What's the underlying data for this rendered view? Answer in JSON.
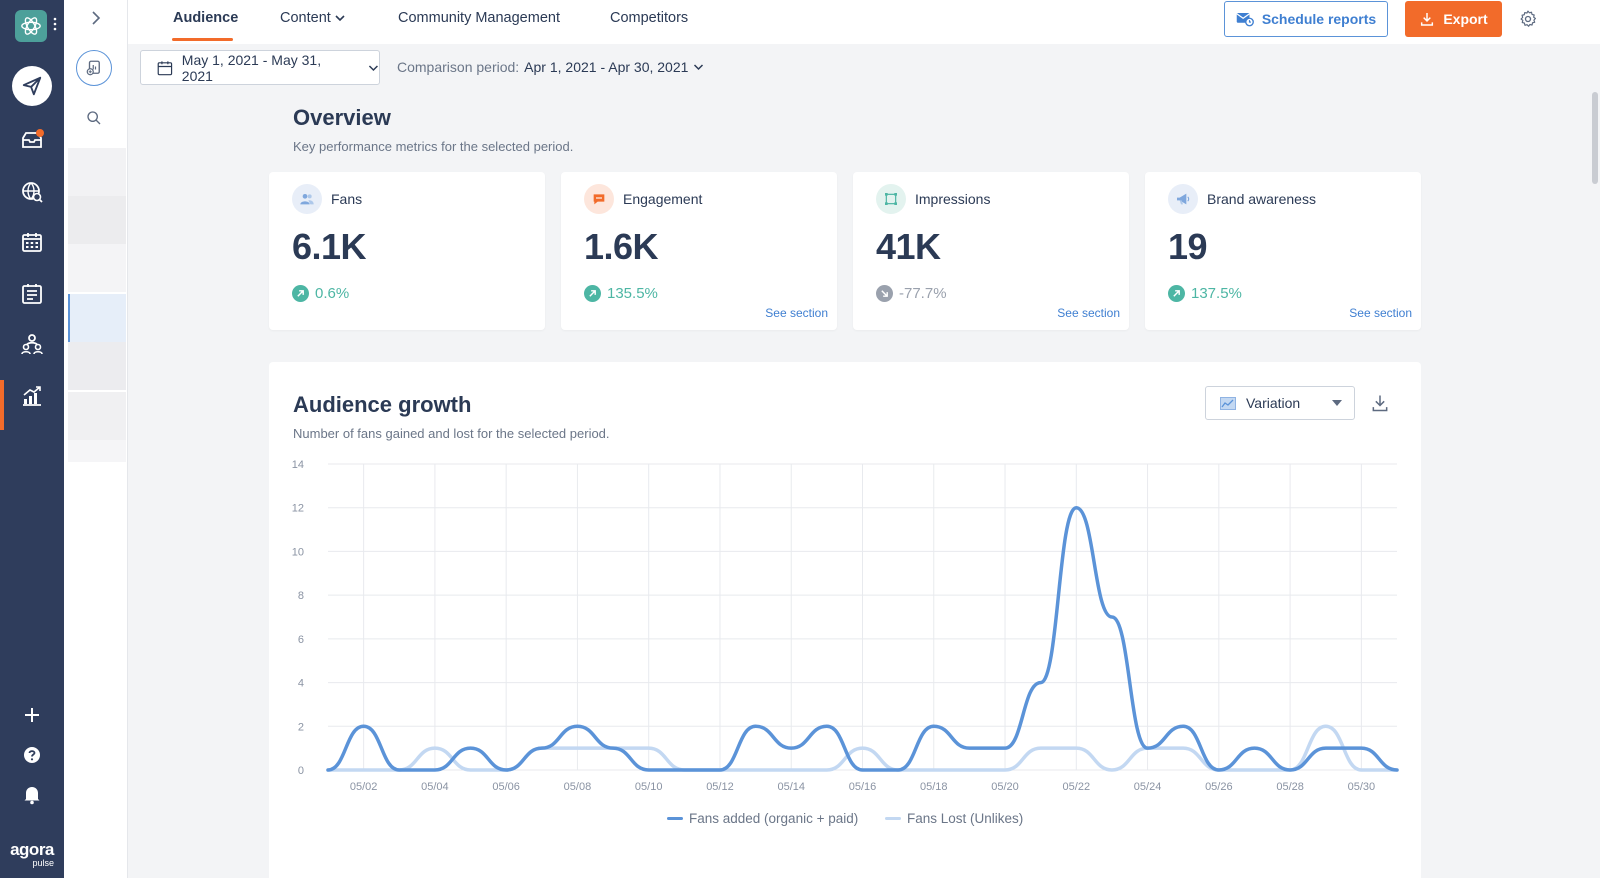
{
  "brand": {
    "name": "agora",
    "sub": "pulse"
  },
  "tabs": [
    {
      "label": "Audience",
      "active": true
    },
    {
      "label": "Content"
    },
    {
      "label": "Community Management"
    },
    {
      "label": "Competitors"
    }
  ],
  "toolbar": {
    "schedule_label": "Schedule reports",
    "export_label": "Export"
  },
  "filters": {
    "date_range": "May 1, 2021 - May 31, 2021",
    "comparison_label": "Comparison period:",
    "comparison_value": "Apr 1, 2021 - Apr 30, 2021"
  },
  "overview": {
    "title": "Overview",
    "subtitle": "Key performance metrics for the selected period.",
    "cards": [
      {
        "label": "Fans",
        "value": "6.1K",
        "trend": "0.6%",
        "direction": "up",
        "link": ""
      },
      {
        "label": "Engagement",
        "value": "1.6K",
        "trend": "135.5%",
        "direction": "up",
        "link": "See section"
      },
      {
        "label": "Impressions",
        "value": "41K",
        "trend": "-77.7%",
        "direction": "down",
        "link": "See section"
      },
      {
        "label": "Brand awareness",
        "value": "19",
        "trend": "137.5%",
        "direction": "up",
        "link": "See section"
      }
    ]
  },
  "growth": {
    "title": "Audience growth",
    "subtitle": "Number of fans gained and lost for the selected period.",
    "view_select": "Variation"
  },
  "colors": {
    "accent": "#f26b2a",
    "link": "#3f7fd1",
    "positive": "#4db6a4",
    "negative": "#9aa1ad",
    "series_added": "#5b93d8",
    "series_lost": "#c3d8f2",
    "rail_bg": "#2f3d5c"
  },
  "icons": {
    "rail": [
      "logo-icon",
      "compose-icon",
      "inbox-icon",
      "listening-icon",
      "calendar-icon",
      "planner-icon",
      "team-icon",
      "reports-icon",
      "add-icon",
      "help-icon",
      "bell-icon"
    ],
    "cards": [
      "fans-icon",
      "engagement-icon",
      "impressions-icon",
      "megaphone-icon"
    ]
  },
  "chart_data": {
    "type": "line",
    "x": [
      "05/01",
      "05/02",
      "05/03",
      "05/04",
      "05/05",
      "05/06",
      "05/07",
      "05/08",
      "05/09",
      "05/10",
      "05/11",
      "05/12",
      "05/13",
      "05/14",
      "05/15",
      "05/16",
      "05/17",
      "05/18",
      "05/19",
      "05/20",
      "05/21",
      "05/22",
      "05/23",
      "05/24",
      "05/25",
      "05/26",
      "05/27",
      "05/28",
      "05/29",
      "05/30",
      "05/31"
    ],
    "xticks": [
      "05/02",
      "05/04",
      "05/06",
      "05/08",
      "05/10",
      "05/12",
      "05/14",
      "05/16",
      "05/18",
      "05/20",
      "05/22",
      "05/24",
      "05/26",
      "05/28",
      "05/30"
    ],
    "ylim": [
      0,
      14
    ],
    "yticks": [
      0,
      2,
      4,
      6,
      8,
      10,
      12,
      14
    ],
    "series": [
      {
        "name": "Fans added (organic + paid)",
        "values": [
          0,
          2,
          0,
          0,
          1,
          0,
          1,
          2,
          1,
          0,
          0,
          0,
          2,
          1,
          2,
          0,
          0,
          2,
          1,
          1,
          4,
          12,
          7,
          1,
          2,
          0,
          1,
          0,
          1,
          1,
          0
        ]
      },
      {
        "name": "Fans Lost (Unlikes)",
        "values": [
          0,
          0,
          0,
          1,
          0,
          0,
          1,
          1,
          1,
          1,
          0,
          0,
          0,
          0,
          0,
          1,
          0,
          0,
          0,
          0,
          1,
          1,
          0,
          1,
          1,
          0,
          0,
          0,
          2,
          0,
          0
        ]
      }
    ],
    "grid": true,
    "legend": "bottom"
  }
}
